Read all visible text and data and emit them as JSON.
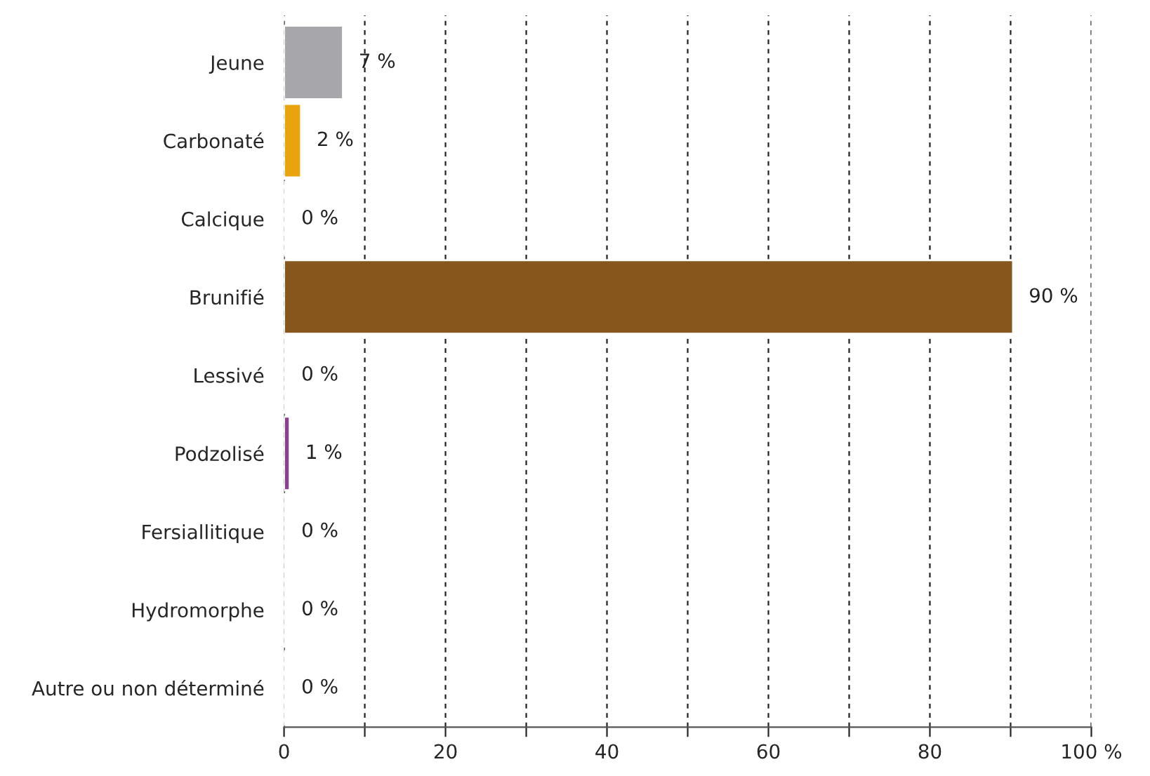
{
  "chart_data": {
    "type": "bar",
    "orientation": "horizontal",
    "categories": [
      "Jeune",
      "Carbonaté",
      "Calcique",
      "Brunifié",
      "Lessivé",
      "Podzolisé",
      "Fersiallitique",
      "Hydromorphe",
      "Autre ou non déterminé"
    ],
    "values": [
      7.3,
      2.1,
      0.2,
      90.3,
      0.2,
      0.7,
      0.2,
      0.2,
      0.2
    ],
    "value_labels": [
      "7 %",
      "2 %",
      "0 %",
      "90 %",
      "0 %",
      "1 %",
      "0 %",
      "0 %",
      "0 %"
    ],
    "colors": [
      "#a7a6ab",
      "#e9a30c",
      "#f3e64a",
      "#86561c",
      "#dcb8cc",
      "#8d3f8f",
      "#d9604a",
      "#4fb4dc",
      "#e0e0e0"
    ],
    "xlim": [
      0,
      100
    ],
    "xticks": [
      0,
      {
        "value": 10,
        "label": null
      },
      20,
      {
        "value": 30,
        "label": null
      },
      40,
      {
        "value": 50,
        "label": null
      },
      60,
      {
        "value": 70,
        "label": null
      },
      80,
      {
        "value": 90,
        "label": null
      },
      {
        "value": 100,
        "label": "100 %"
      }
    ],
    "grid": "x",
    "legend": false
  }
}
